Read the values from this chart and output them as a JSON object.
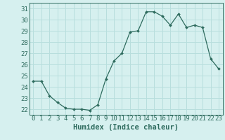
{
  "x": [
    0,
    1,
    2,
    3,
    4,
    5,
    6,
    7,
    8,
    9,
    10,
    11,
    12,
    13,
    14,
    15,
    16,
    17,
    18,
    19,
    20,
    21,
    22,
    23
  ],
  "y": [
    24.5,
    24.5,
    23.2,
    22.6,
    22.1,
    22.0,
    22.0,
    21.9,
    22.4,
    24.7,
    26.3,
    27.0,
    28.9,
    29.0,
    30.7,
    30.7,
    30.3,
    29.5,
    30.5,
    29.3,
    29.5,
    29.3,
    26.5,
    25.6
  ],
  "line_color": "#2e6b5e",
  "marker": "D",
  "marker_size": 2.0,
  "bg_color": "#d6f0ef",
  "grid_color": "#b8dedd",
  "tick_color": "#2e6b5e",
  "xlabel": "Humidex (Indice chaleur)",
  "ylim": [
    21.5,
    31.5
  ],
  "yticks": [
    22,
    23,
    24,
    25,
    26,
    27,
    28,
    29,
    30,
    31
  ],
  "xticks": [
    0,
    1,
    2,
    3,
    4,
    5,
    6,
    7,
    8,
    9,
    10,
    11,
    12,
    13,
    14,
    15,
    16,
    17,
    18,
    19,
    20,
    21,
    22,
    23
  ],
  "xlim": [
    -0.5,
    23.5
  ],
  "xlabel_fontsize": 7.5,
  "tick_fontsize": 6.5
}
